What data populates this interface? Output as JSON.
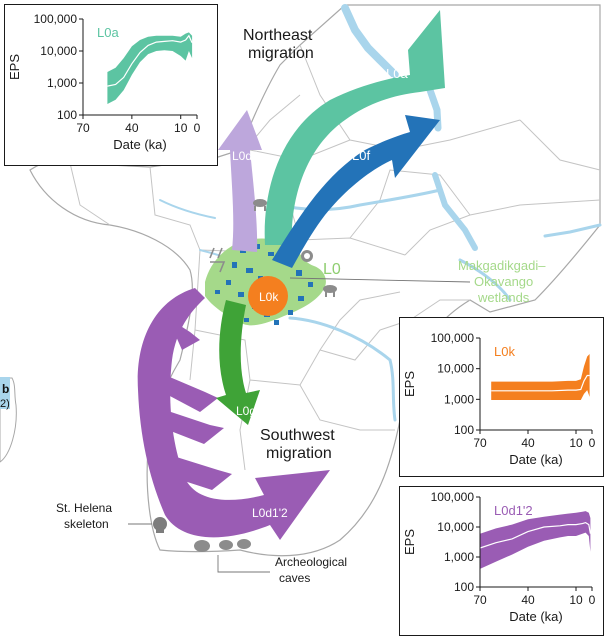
{
  "map_labels": {
    "northeast": [
      "Northeast",
      "migration"
    ],
    "southwest": [
      "Southwest",
      "migration"
    ],
    "wetlands": [
      "Makgadikgadi–",
      "Okavango",
      "wetlands"
    ],
    "st_helena": [
      "St. Helena",
      "skeleton"
    ],
    "caves": [
      "Archeological",
      "caves"
    ],
    "panel_b_letter": "b",
    "panel_b_num": "2)"
  },
  "arrows": {
    "L0a": "L0a",
    "L0f": "L0f",
    "L0d3": "L0d3",
    "L0g": "L0g",
    "L0d1_2": "L0d1'2",
    "L0k": "L0k",
    "L0": "L0"
  },
  "colors": {
    "L0a": "#5cc4a2",
    "L0f": "#2373b8",
    "L0d3": "#bda7dc",
    "L0g": "#3fa337",
    "L0d1_2": "#9a5cb4",
    "L0k": "#f47f1f",
    "L0": "#a5d98a",
    "water": "#a9d5ec",
    "border": "#b3b3b3"
  },
  "chart_data": [
    {
      "type": "area",
      "series_label": "L0a",
      "ylabel": "EPS",
      "xlabel": "Date (ka)",
      "xticks": [
        "70",
        "40",
        "10",
        "0"
      ],
      "yticks": [
        "100",
        "1,000",
        "10,000",
        "100,000"
      ],
      "xlim": [
        70,
        0
      ],
      "ylim": [
        100,
        100000
      ],
      "log_y": true,
      "color": "#5cc4a2",
      "x": [
        55,
        50,
        45,
        40,
        35,
        30,
        25,
        20,
        15,
        10,
        7,
        5,
        3
      ],
      "median": [
        800,
        900,
        1500,
        4000,
        9000,
        15000,
        19000,
        20000,
        21000,
        19000,
        22000,
        30000,
        18000
      ],
      "lower": [
        220,
        300,
        600,
        1800,
        4500,
        8000,
        10000,
        10500,
        10000,
        7000,
        5000,
        10000,
        6000
      ],
      "upper": [
        2200,
        3000,
        6000,
        14000,
        22000,
        28000,
        30000,
        30000,
        30000,
        28000,
        35000,
        38000,
        30000
      ]
    },
    {
      "type": "area",
      "series_label": "L0k",
      "ylabel": "EPS",
      "xlabel": "Date (ka)",
      "xticks": [
        "70",
        "40",
        "10",
        "0"
      ],
      "yticks": [
        "100",
        "1,000",
        "10,000",
        "100,000"
      ],
      "xlim": [
        70,
        0
      ],
      "ylim": [
        100,
        100000
      ],
      "log_y": true,
      "color": "#f47f1f",
      "x": [
        63,
        55,
        45,
        35,
        25,
        15,
        10,
        7,
        5,
        3,
        1.5
      ],
      "median": [
        1900,
        1900,
        1900,
        1900,
        1900,
        2000,
        2000,
        2100,
        4000,
        6000,
        6000
      ],
      "lower": [
        950,
        950,
        950,
        950,
        950,
        950,
        950,
        950,
        1500,
        2000,
        1200
      ],
      "upper": [
        3800,
        3800,
        3800,
        3800,
        3800,
        4000,
        4000,
        4500,
        12000,
        25000,
        30000
      ]
    },
    {
      "type": "area",
      "series_label": "L0d1'2",
      "ylabel": "EPS",
      "xlabel": "Date (ka)",
      "xticks": [
        "70",
        "40",
        "10",
        "0"
      ],
      "yticks": [
        "100",
        "1,000",
        "10,000",
        "100,000"
      ],
      "xlim": [
        70,
        0
      ],
      "ylim": [
        100,
        100000
      ],
      "log_y": true,
      "color": "#9a5cb4",
      "x": [
        70,
        60,
        50,
        40,
        30,
        20,
        15,
        10,
        6,
        4,
        2,
        1
      ],
      "median": [
        2000,
        3000,
        4000,
        7000,
        10000,
        11000,
        12000,
        12000,
        13000,
        14000,
        12000,
        6000
      ],
      "lower": [
        400,
        700,
        1200,
        2200,
        3500,
        4500,
        5000,
        5000,
        6000,
        6500,
        5000,
        1500
      ],
      "upper": [
        6000,
        9000,
        12000,
        18000,
        22000,
        26000,
        28000,
        30000,
        32000,
        34000,
        30000,
        20000
      ]
    }
  ]
}
